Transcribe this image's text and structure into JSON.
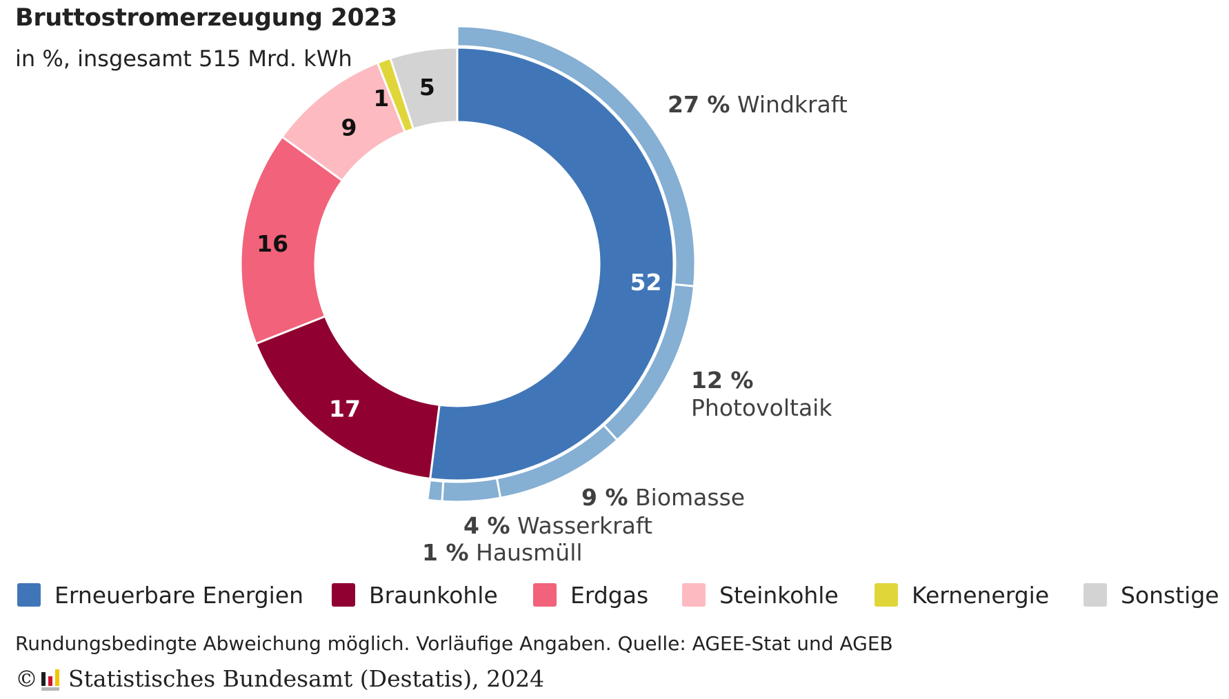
{
  "header": {
    "title": "Bruttostromerzeugung 2023",
    "subtitle": "in %, insgesamt 515 Mrd. kWh"
  },
  "chart_data": {
    "type": "pie",
    "variant": "donut-with-outer-breakdown",
    "title": "Bruttostromerzeugung 2023",
    "subtitle": "in %, insgesamt 515 Mrd. kWh",
    "unit": "%",
    "total_label": "515 Mrd. kWh",
    "series": [
      {
        "name": "Erneuerbare Energien",
        "value": 52,
        "label": "52",
        "color": "#4076b7",
        "label_color": "#ffffff"
      },
      {
        "name": "Braunkohle",
        "value": 17,
        "label": "17",
        "color": "#900030",
        "label_color": "#ffffff"
      },
      {
        "name": "Erdgas",
        "value": 16,
        "label": "16",
        "color": "#f2627a",
        "label_color": "#111111"
      },
      {
        "name": "Steinkohle",
        "value": 9,
        "label": "9",
        "color": "#fdbac0",
        "label_color": "#111111"
      },
      {
        "name": "Kernenergie",
        "value": 1,
        "label": "1",
        "color": "#e0d63a",
        "label_color": "#111111"
      },
      {
        "name": "Sonstige",
        "value": 5,
        "label": "5",
        "color": "#d3d3d3",
        "label_color": "#111111"
      }
    ],
    "breakdown_of": "Erneuerbare Energien",
    "breakdown": [
      {
        "name": "Windkraft",
        "value": 27,
        "pct_label": "27 %",
        "color": "#85afd3"
      },
      {
        "name": "Photovoltaik",
        "value": 12,
        "pct_label": "12 %",
        "color": "#85afd3"
      },
      {
        "name": "Biomasse",
        "value": 9,
        "pct_label": "9 %",
        "color": "#85afd3"
      },
      {
        "name": "Wasserkraft",
        "value": 4,
        "pct_label": "4 %",
        "color": "#85afd3"
      },
      {
        "name": "Hausmüll",
        "value": 1,
        "pct_label": "1 %",
        "color": "#85afd3"
      }
    ],
    "legend_position": "bottom"
  },
  "legend": [
    {
      "label": "Erneuerbare Energien",
      "color": "#4076b7"
    },
    {
      "label": "Braunkohle",
      "color": "#900030"
    },
    {
      "label": "Erdgas",
      "color": "#f2627a"
    },
    {
      "label": "Steinkohle",
      "color": "#fdbac0"
    },
    {
      "label": "Kernenergie",
      "color": "#e0d63a"
    },
    {
      "label": "Sonstige",
      "color": "#d3d3d3"
    }
  ],
  "footer": {
    "note": "Rundungsbedingte Abweichung möglich. Vorläufige Angaben. Quelle: AGEE-Stat und AGEB",
    "copyright_symbol": "©",
    "credit": "Statistisches Bundesamt (Destatis), 2024"
  }
}
